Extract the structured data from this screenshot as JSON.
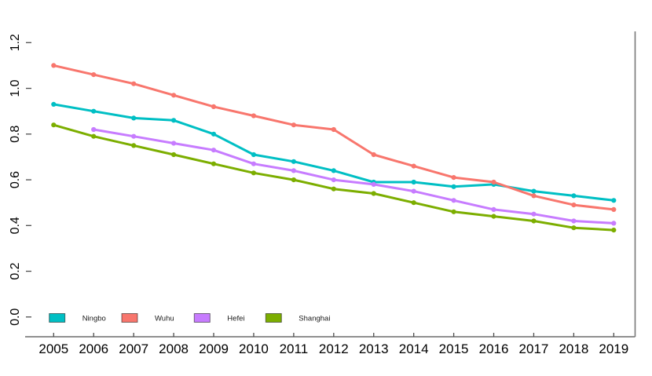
{
  "chart_data": {
    "type": "line",
    "title": "",
    "xlabel": "",
    "ylabel": "",
    "x": [
      2005,
      2006,
      2007,
      2008,
      2009,
      2010,
      2011,
      2012,
      2013,
      2014,
      2015,
      2016,
      2017,
      2018,
      2019
    ],
    "xtick_labels": [
      "2005",
      "2006",
      "2007",
      "2008",
      "2009",
      "2010",
      "2011",
      "2012",
      "2013",
      "2014",
      "2015",
      "2016",
      "2017",
      "2018",
      "2019"
    ],
    "ylim": [
      0.0,
      1.2
    ],
    "yticks": [
      0.0,
      0.2,
      0.4,
      0.6,
      0.8,
      1.0,
      1.2
    ],
    "ytick_labels": [
      "0.0",
      "0.2",
      "0.4",
      "0.6",
      "0.8",
      "1.0",
      "1.2"
    ],
    "grid": false,
    "legend_position": "bottom-left",
    "series": [
      {
        "name": "Ningbo",
        "color": "#00BFC4",
        "values": [
          0.93,
          0.9,
          0.87,
          0.86,
          0.8,
          0.71,
          0.68,
          0.64,
          0.59,
          0.59,
          0.57,
          0.58,
          0.55,
          0.53,
          0.51
        ]
      },
      {
        "name": "Wuhu",
        "color": "#F8766D",
        "values": [
          1.1,
          1.06,
          1.02,
          0.97,
          0.92,
          0.88,
          0.84,
          0.82,
          0.71,
          0.66,
          0.61,
          0.59,
          0.53,
          0.49,
          0.47
        ]
      },
      {
        "name": "Hefei",
        "color": "#C77CFF",
        "values": [
          null,
          0.82,
          0.79,
          0.76,
          0.73,
          0.67,
          0.64,
          0.6,
          0.58,
          0.55,
          0.51,
          0.47,
          0.45,
          0.42,
          0.41
        ]
      },
      {
        "name": "Shanghai",
        "color": "#7CAE00",
        "values": [
          0.84,
          0.79,
          0.75,
          0.71,
          0.67,
          0.63,
          0.6,
          0.56,
          0.54,
          0.5,
          0.46,
          0.44,
          0.42,
          0.39,
          0.38
        ]
      }
    ],
    "legend": [
      "Ningbo",
      "Wuhu",
      "Hefei",
      "Shanghai"
    ]
  },
  "style": {
    "axis_line_color": "#4d4d4d",
    "right_border_color": "#787878",
    "tick_color": "#4d4d4d",
    "label_color": "#000000",
    "legend_text_color": "#1a1a1a",
    "background": "#ffffff"
  }
}
